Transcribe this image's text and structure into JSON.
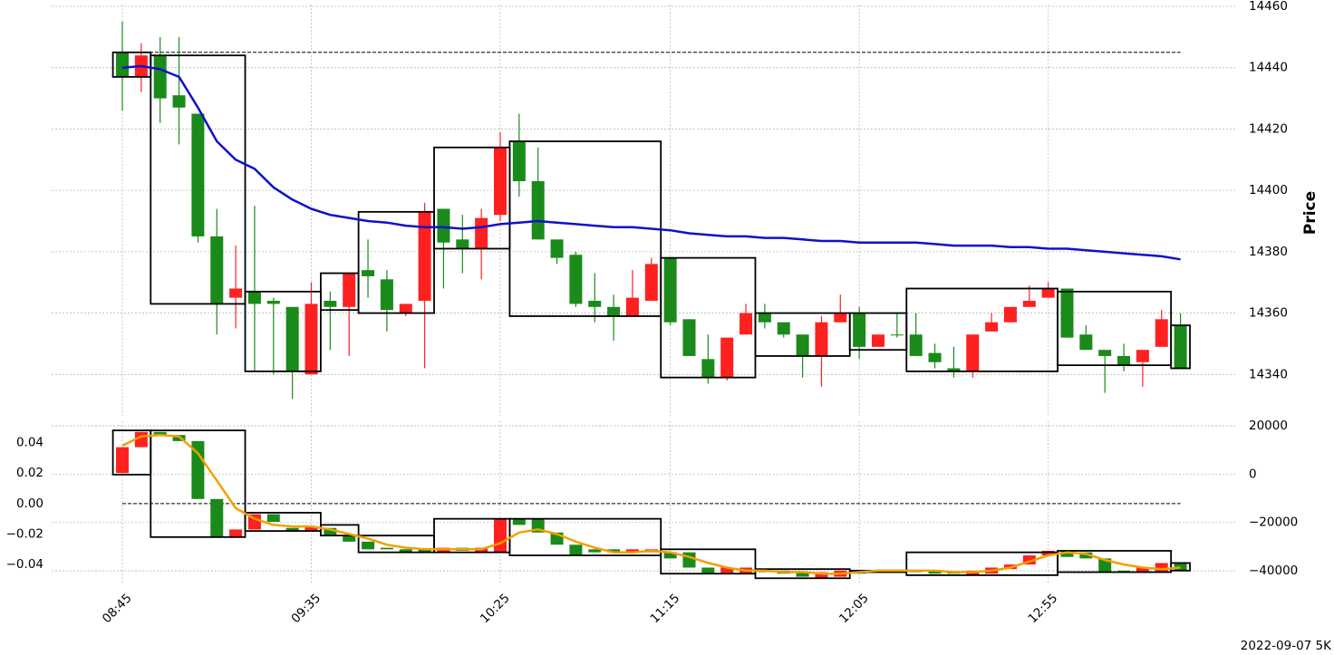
{
  "chart_data": [
    {
      "type": "candlestick",
      "ylabel": "Price",
      "grid": true,
      "up_color": "#ff2020",
      "down_color": "#1a8a1a",
      "box_color": "#000000",
      "ylim": [
        14326,
        14460.5
      ],
      "yticks": [
        14340,
        14360,
        14380,
        14400,
        14420,
        14440,
        14460
      ],
      "hline": 14445,
      "open": [
        14445,
        14437,
        14444,
        14431,
        14425,
        14385,
        14365,
        14367,
        14364,
        14362,
        14340,
        14364,
        14362,
        14374,
        14371,
        14360,
        14364,
        14394,
        14384,
        14381,
        14392,
        14416,
        14403,
        14384,
        14379,
        14364,
        14362,
        14359,
        14364,
        14378,
        14358,
        14345,
        14339,
        14353,
        14360,
        14357,
        14353,
        14346,
        14357,
        14360,
        14349,
        14353,
        14353,
        14347,
        14342,
        14341,
        14354,
        14357,
        14362,
        14365,
        14368,
        14353,
        14348,
        14346,
        14344,
        14349,
        14356
      ],
      "high": [
        14455,
        14448,
        14450,
        14450,
        14425,
        14394,
        14382,
        14395,
        14365,
        14362,
        14370,
        14367,
        14373,
        14384,
        14374,
        14363,
        14396,
        14394,
        14392,
        14394,
        14419,
        14425,
        14414,
        14384,
        14380,
        14373,
        14366,
        14374,
        14378,
        14378,
        14358,
        14353,
        14352,
        14363,
        14363,
        14357,
        14353,
        14359,
        14366,
        14362,
        14353,
        14360,
        14360,
        14350,
        14349,
        14353,
        14360,
        14362,
        14369,
        14370,
        14368,
        14356,
        14348,
        14350,
        14348,
        14361,
        14360
      ],
      "low": [
        14426,
        14432,
        14422,
        14415,
        14383,
        14353,
        14355,
        14341,
        14340,
        14332,
        14340,
        14348,
        14346,
        14365,
        14354,
        14359,
        14342,
        14368,
        14373,
        14371,
        14390,
        14398,
        14384,
        14376,
        14362,
        14357,
        14351,
        14359,
        14364,
        14356,
        14346,
        14337,
        14338,
        14353,
        14355,
        14352,
        14339,
        14336,
        14357,
        14345,
        14349,
        14352,
        14346,
        14342,
        14339,
        14339,
        14354,
        14357,
        14362,
        14365,
        14352,
        14348,
        14334,
        14341,
        14336,
        14349,
        14342
      ],
      "close": [
        14437,
        14444,
        14430,
        14427,
        14385,
        14363,
        14368,
        14363,
        14363,
        14341,
        14363,
        14362,
        14373,
        14372,
        14361,
        14363,
        14393,
        14383,
        14381,
        14391,
        14414,
        14403,
        14384,
        14378,
        14363,
        14362,
        14359,
        14365,
        14376,
        14357,
        14346,
        14339,
        14352,
        14360,
        14357,
        14353,
        14346,
        14357,
        14360,
        14349,
        14353,
        14353,
        14346,
        14344,
        14341,
        14353,
        14357,
        14362,
        14364,
        14368,
        14352,
        14348,
        14346,
        14343,
        14348,
        14358,
        14342
      ],
      "line": {
        "color": "#1010cc",
        "values": [
          14440,
          14440.5,
          14439.5,
          14437,
          14427,
          14416,
          14410,
          14407,
          14401,
          14397,
          14394,
          14392,
          14391,
          14390,
          14389.5,
          14388.5,
          14388,
          14388,
          14387.5,
          14388,
          14389,
          14389.5,
          14390,
          14389.5,
          14389,
          14388.5,
          14388,
          14388,
          14387.5,
          14387,
          14386,
          14385.5,
          14385,
          14385,
          14384.5,
          14384.5,
          14384,
          14383.5,
          14383.5,
          14383,
          14383,
          14383,
          14383,
          14382.5,
          14382,
          14382,
          14382,
          14381.5,
          14381.5,
          14381,
          14381,
          14380.5,
          14380,
          14379.5,
          14379,
          14378.5,
          14377.5
        ]
      },
      "boxes": [
        {
          "start": 0,
          "end": 1,
          "high": 14445,
          "low": 14437
        },
        {
          "start": 2,
          "end": 6,
          "high": 14444,
          "low": 14363
        },
        {
          "start": 7,
          "end": 10,
          "high": 14367,
          "low": 14341
        },
        {
          "start": 11,
          "end": 12,
          "high": 14373,
          "low": 14361
        },
        {
          "start": 13,
          "end": 16,
          "high": 14393,
          "low": 14360
        },
        {
          "start": 17,
          "end": 20,
          "high": 14414,
          "low": 14381
        },
        {
          "start": 21,
          "end": 28,
          "high": 14416,
          "low": 14359
        },
        {
          "start": 29,
          "end": 33,
          "high": 14378,
          "low": 14339
        },
        {
          "start": 34,
          "end": 38,
          "high": 14360,
          "low": 14346
        },
        {
          "start": 39,
          "end": 41,
          "high": 14360,
          "low": 14348
        },
        {
          "start": 42,
          "end": 49,
          "high": 14368,
          "low": 14341
        },
        {
          "start": 50,
          "end": 55,
          "high": 14367,
          "low": 14343
        },
        {
          "start": 56,
          "end": 56,
          "high": 14356,
          "low": 14342
        }
      ]
    },
    {
      "type": "candlestick",
      "grid": true,
      "xlabel": "2022-09-07 5K",
      "up_color": "#ff2020",
      "down_color": "#1a8a1a",
      "box_color": "#000000",
      "categories": [
        "08:45",
        null,
        null,
        null,
        null,
        null,
        null,
        null,
        null,
        null,
        "09:35",
        null,
        null,
        null,
        null,
        null,
        null,
        null,
        null,
        null,
        "10:25",
        null,
        null,
        null,
        null,
        null,
        null,
        null,
        null,
        "11:15",
        null,
        null,
        null,
        null,
        null,
        null,
        null,
        null,
        null,
        "12:05",
        null,
        null,
        null,
        null,
        null,
        null,
        null,
        null,
        null,
        "12:55",
        null,
        null,
        null,
        null,
        null,
        null,
        null
      ],
      "ylim": [
        -0.053,
        0.054
      ],
      "yticks": [
        {
          "value": -0.04,
          "label": "−0.04"
        },
        {
          "value": -0.02,
          "label": "−0.02"
        },
        {
          "value": 0,
          "label": "0.00"
        },
        0.02,
        0.04
      ],
      "y2lim": [
        -45600,
        21900
      ],
      "y2ticks": [
        {
          "value": -40000,
          "label": "−40000"
        },
        {
          "value": -20000,
          "label": "−20000"
        },
        0,
        20000
      ],
      "hline": 0,
      "open": [
        0.02,
        0.037,
        0.047,
        0.045,
        0.041,
        0.003,
        -0.022,
        -0.017,
        -0.007,
        -0.016,
        -0.018,
        -0.016,
        -0.021,
        -0.025,
        -0.029,
        -0.03,
        -0.03,
        -0.032,
        -0.029,
        -0.032,
        -0.032,
        -0.01,
        -0.01,
        -0.019,
        -0.027,
        -0.03,
        -0.03,
        -0.032,
        -0.032,
        -0.032,
        -0.032,
        -0.042,
        -0.046,
        -0.046,
        -0.044,
        -0.044,
        -0.045,
        -0.049,
        -0.048,
        -0.044,
        -0.045,
        -0.044,
        -0.044,
        -0.044,
        -0.045,
        -0.047,
        -0.046,
        -0.043,
        -0.04,
        -0.034,
        -0.031,
        -0.032,
        -0.036,
        -0.044,
        -0.045,
        -0.045,
        -0.039
      ],
      "close": [
        0.037,
        0.047,
        0.045,
        0.041,
        0.003,
        -0.022,
        -0.017,
        -0.007,
        -0.012,
        -0.018,
        -0.015,
        -0.021,
        -0.025,
        -0.03,
        -0.03,
        -0.032,
        -0.032,
        -0.029,
        -0.031,
        -0.029,
        -0.01,
        -0.014,
        -0.019,
        -0.027,
        -0.034,
        -0.032,
        -0.032,
        -0.03,
        -0.03,
        -0.036,
        -0.042,
        -0.046,
        -0.042,
        -0.042,
        -0.045,
        -0.046,
        -0.048,
        -0.045,
        -0.044,
        -0.046,
        -0.044,
        -0.045,
        -0.045,
        -0.046,
        -0.046,
        -0.044,
        -0.042,
        -0.04,
        -0.034,
        -0.031,
        -0.035,
        -0.036,
        -0.045,
        -0.045,
        -0.042,
        -0.039,
        -0.044
      ],
      "line": {
        "color": "#f0a000",
        "values": [
          0.038,
          0.044,
          0.045,
          0.044,
          0.033,
          0.015,
          -0.003,
          -0.01,
          -0.014,
          -0.015,
          -0.015,
          -0.017,
          -0.02,
          -0.023,
          -0.027,
          -0.029,
          -0.03,
          -0.03,
          -0.03,
          -0.03,
          -0.026,
          -0.019,
          -0.017,
          -0.02,
          -0.025,
          -0.029,
          -0.032,
          -0.032,
          -0.031,
          -0.032,
          -0.035,
          -0.039,
          -0.042,
          -0.044,
          -0.044,
          -0.045,
          -0.045,
          -0.046,
          -0.046,
          -0.045,
          -0.044,
          -0.044,
          -0.044,
          -0.044,
          -0.045,
          -0.045,
          -0.044,
          -0.042,
          -0.038,
          -0.034,
          -0.032,
          -0.033,
          -0.037,
          -0.04,
          -0.042,
          -0.043,
          -0.042
        ]
      },
      "boxes": [
        {
          "start": 0,
          "end": 1,
          "high": 0.048,
          "low": 0.019
        },
        {
          "start": 2,
          "end": 6,
          "high": 0.048,
          "low": -0.022
        },
        {
          "start": 7,
          "end": 10,
          "high": -0.006,
          "low": -0.018
        },
        {
          "start": 11,
          "end": 12,
          "high": -0.014,
          "low": -0.021
        },
        {
          "start": 13,
          "end": 16,
          "high": -0.021,
          "low": -0.032
        },
        {
          "start": 17,
          "end": 20,
          "high": -0.01,
          "low": -0.032
        },
        {
          "start": 21,
          "end": 28,
          "high": -0.01,
          "low": -0.034
        },
        {
          "start": 29,
          "end": 33,
          "high": -0.03,
          "low": -0.046
        },
        {
          "start": 34,
          "end": 38,
          "high": -0.043,
          "low": -0.049
        },
        {
          "start": 39,
          "end": 41,
          "high": -0.044,
          "low": -0.045
        },
        {
          "start": 42,
          "end": 49,
          "high": -0.032,
          "low": -0.047
        },
        {
          "start": 50,
          "end": 55,
          "high": -0.031,
          "low": -0.045
        },
        {
          "start": 56,
          "end": 56,
          "high": -0.039,
          "low": -0.044
        }
      ]
    }
  ]
}
